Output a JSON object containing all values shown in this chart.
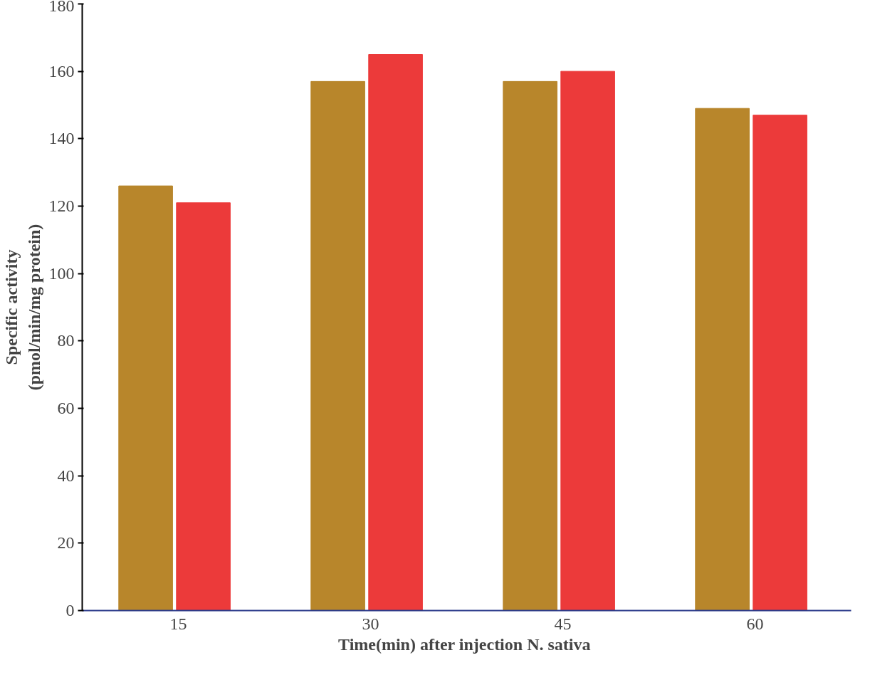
{
  "chart_data": {
    "type": "bar",
    "xlabel": "Time(min) after  injection N. sativa",
    "ylabel": "Specific activity\n(pmol/min/mg protein)",
    "categories": [
      "15",
      "30",
      "45",
      "60"
    ],
    "series": [
      {
        "color": "#b8862b",
        "values": [
          126,
          157,
          157,
          149
        ]
      },
      {
        "color": "#ec3a3a",
        "values": [
          121,
          165,
          160,
          147
        ]
      }
    ],
    "ylim": [
      0,
      180
    ],
    "yticks": [
      0,
      20,
      40,
      60,
      80,
      100,
      120,
      140,
      160,
      180
    ],
    "grid": false
  }
}
